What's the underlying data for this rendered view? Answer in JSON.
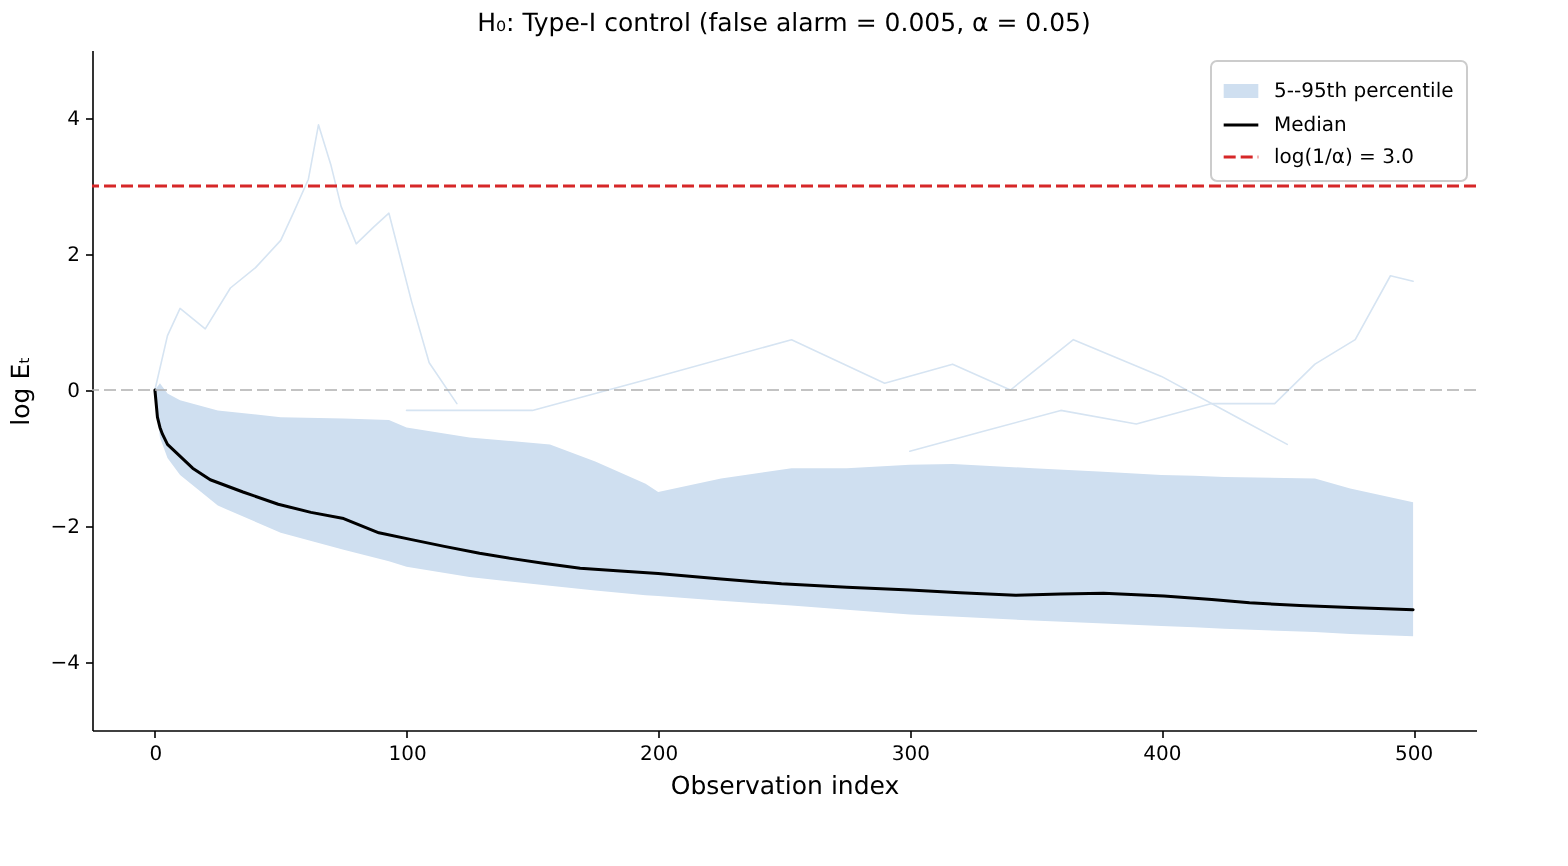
{
  "chart_data": {
    "type": "line",
    "title": "H₀: Type-I control (false alarm = 0.005, α = 0.05)",
    "xlabel": "Observation index",
    "ylabel": "log Eₜ",
    "xlim": [
      -25,
      525
    ],
    "xticks": [
      0,
      100,
      200,
      300,
      400,
      500
    ],
    "ylim": [
      -5,
      5
    ],
    "yticks": [
      -4,
      -2,
      0,
      2,
      4
    ],
    "legend": "top right",
    "series": [
      {
        "name": "5--95th percentile",
        "type": "area",
        "color": "#cfdff0",
        "x": [
          0,
          2,
          5,
          10,
          25,
          50,
          75,
          93,
          100,
          125,
          157,
          175,
          195,
          200,
          225,
          253,
          275,
          300,
          317,
          349,
          375,
          400,
          413,
          425,
          461,
          475,
          500
        ],
        "values": [
          null,
          null,
          null,
          null,
          null,
          null,
          null,
          null,
          null,
          null,
          null,
          null,
          null,
          null,
          null,
          null,
          null,
          null,
          null,
          null,
          null,
          null,
          null,
          null,
          null,
          null,
          null
        ],
        "lower": [
          0,
          -0.7,
          -1.0,
          -1.25,
          -1.7,
          -2.1,
          -2.35,
          -2.52,
          -2.6,
          -2.75,
          -2.88,
          -2.95,
          -3.02,
          -3.03,
          -3.1,
          -3.17,
          -3.23,
          -3.3,
          -3.33,
          -3.39,
          -3.43,
          -3.47,
          -3.49,
          -3.51,
          -3.56,
          -3.59,
          -3.62
        ],
        "upper": [
          0,
          0.1,
          -0.05,
          -0.15,
          -0.3,
          -0.4,
          -0.42,
          -0.44,
          -0.55,
          -0.7,
          -0.8,
          -1.05,
          -1.38,
          -1.5,
          -1.3,
          -1.15,
          -1.15,
          -1.1,
          -1.09,
          -1.15,
          -1.2,
          -1.25,
          -1.26,
          -1.28,
          -1.3,
          -1.45,
          -1.65
        ]
      },
      {
        "color": "#d6e4f2",
        "x": [
          0,
          5,
          10,
          20,
          30,
          40,
          50,
          55,
          61,
          65,
          70,
          74,
          80,
          87,
          93,
          102,
          109,
          120
        ],
        "values": [
          0,
          0.8,
          1.2,
          0.9,
          1.5,
          1.8,
          2.2,
          2.6,
          3.1,
          3.9,
          3.3,
          2.7,
          2.15,
          2.4,
          2.6,
          1.3,
          0.4,
          -0.2
        ]
      },
      {
        "color": "#d6e4f2",
        "x": [
          100,
          150,
          200,
          253,
          290,
          317,
          340,
          365,
          400,
          430,
          450
        ],
        "values": [
          -0.3,
          -0.3,
          0.2,
          0.74,
          0.1,
          0.38,
          0.0,
          0.74,
          0.2,
          -0.4,
          -0.8
        ]
      },
      {
        "color": "#d6e4f2",
        "x": [
          300,
          330,
          360,
          390,
          420,
          445,
          461,
          477,
          491,
          500
        ],
        "values": [
          -0.9,
          -0.6,
          -0.3,
          -0.5,
          -0.2,
          -0.2,
          0.38,
          0.74,
          1.68,
          1.6
        ]
      },
      {
        "name": "Median",
        "color": "#000000",
        "x": [
          0,
          1,
          2,
          3,
          5,
          9,
          15,
          22,
          35,
          49,
          62,
          75,
          89,
          102,
          115,
          129,
          142,
          155,
          169,
          185,
          200,
          225,
          249,
          275,
          300,
          320,
          342,
          360,
          377,
          401,
          420,
          435,
          455,
          475,
          500
        ],
        "values": [
          0,
          -0.4,
          -0.55,
          -0.65,
          -0.8,
          -0.94,
          -1.15,
          -1.32,
          -1.5,
          -1.68,
          -1.8,
          -1.89,
          -2.1,
          -2.2,
          -2.3,
          -2.4,
          -2.48,
          -2.55,
          -2.62,
          -2.66,
          -2.7,
          -2.78,
          -2.85,
          -2.9,
          -2.94,
          -2.98,
          -3.02,
          -3.0,
          -2.99,
          -3.03,
          -3.08,
          -3.13,
          -3.17,
          -3.2,
          -3.23
        ]
      }
    ],
    "ref_lines": [
      {
        "axis": "y",
        "value": 3,
        "label": "log(1/α) = 3.0",
        "color": "#d62728",
        "line_style": "dashed"
      },
      {
        "axis": "y",
        "value": 0,
        "color": "#b0b0b0",
        "line_style": "dashed"
      }
    ]
  }
}
